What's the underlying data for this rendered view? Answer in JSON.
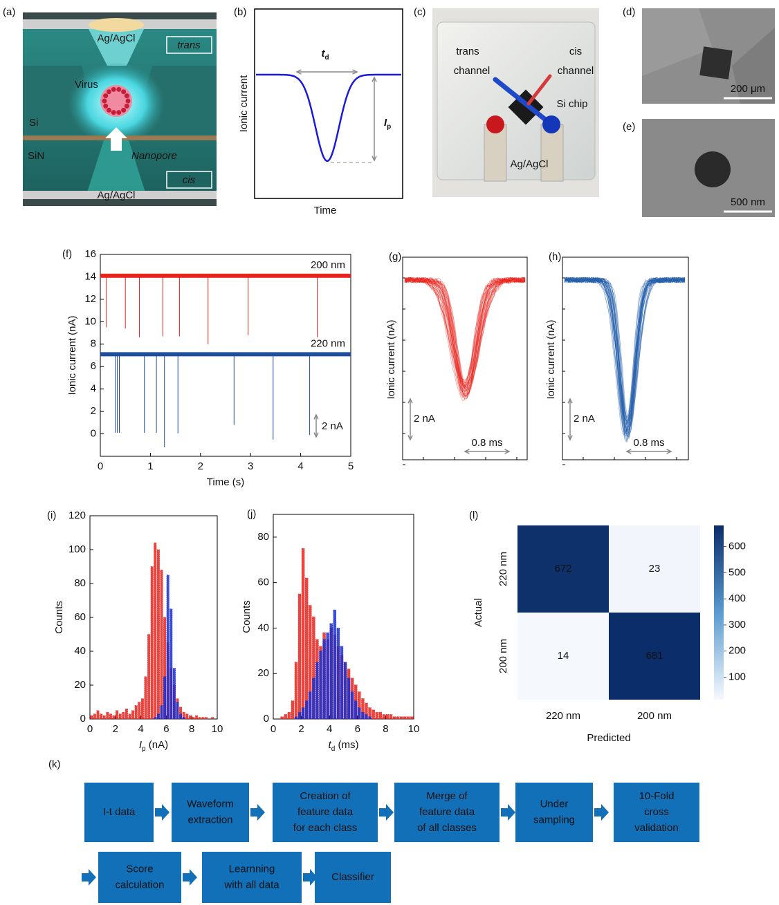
{
  "schematic": {
    "label": "(a)",
    "top_electrode": "Ag/AgCl",
    "trans": "trans",
    "virus": "Virus",
    "si": "Si",
    "sin": "SiN",
    "nanopore": "Nanopore",
    "cis": "cis",
    "bottom_electrode": "Ag/AgCl"
  },
  "concept": {
    "label": "(b)",
    "ylabel": "Ionic current",
    "xlabel": "Time",
    "td": {
      "main": "t",
      "sub": "d"
    },
    "ip": {
      "main": "I",
      "sub": "p"
    }
  },
  "photo": {
    "label": "(c)",
    "trans": [
      "trans",
      "channel"
    ],
    "cis": [
      "cis",
      "channel"
    ],
    "chip": "Si chip",
    "electrode": "Ag/AgCl"
  },
  "sem_top": {
    "label": "(d)",
    "scale": "200 μm"
  },
  "sem_pore": {
    "label": "(e)",
    "scale": "500 nm"
  },
  "chart_data": [
    {
      "type": "line",
      "label": "(f)",
      "xlabel": "Time (s)",
      "ylabel": "Ionic current (nA)",
      "xlim": [
        0,
        5
      ],
      "ylim": [
        -2,
        16
      ],
      "xticks": [
        0,
        1,
        2,
        3,
        4,
        5
      ],
      "yticks": [
        0,
        2,
        4,
        6,
        8,
        10,
        12,
        14,
        16
      ],
      "annotation": "2 nA",
      "series": [
        {
          "name": "200 nm",
          "color": "#e8251f",
          "x": [
            0,
            0.12,
            0.12,
            0.12,
            0.5,
            0.5,
            0.5,
            0.78,
            0.78,
            0.78,
            1.25,
            1.25,
            1.25,
            1.58,
            1.58,
            1.58,
            2.15,
            2.15,
            2.15,
            2.95,
            2.95,
            2.95,
            4.33,
            4.33,
            4.33,
            5
          ],
          "values": [
            14.1,
            14.1,
            9.5,
            14.1,
            14.1,
            9.4,
            14.1,
            14.1,
            8.6,
            14.1,
            14.1,
            8.7,
            14.1,
            14.1,
            8.7,
            14.1,
            14.1,
            8.0,
            14.1,
            14.1,
            8.8,
            14.1,
            14.1,
            8.6,
            14.1,
            14.1
          ]
        },
        {
          "name": "220 nm",
          "color": "#1f4e9c",
          "x": [
            0,
            0.3,
            0.3,
            0.3,
            0.34,
            0.34,
            0.34,
            0.38,
            0.38,
            0.38,
            0.88,
            0.88,
            0.88,
            1.12,
            1.12,
            1.12,
            1.28,
            1.28,
            1.28,
            1.55,
            1.55,
            1.55,
            2.67,
            2.67,
            2.67,
            3.45,
            3.45,
            3.45,
            4.18,
            4.18,
            4.18,
            5
          ],
          "values": [
            7.1,
            7.1,
            0.1,
            7.1,
            7.1,
            0.1,
            7.1,
            7.1,
            0.1,
            7.1,
            7.1,
            0.1,
            7.1,
            7.1,
            0.1,
            7.1,
            7.1,
            -1.2,
            7.1,
            7.1,
            0.05,
            7.1,
            7.1,
            0.8,
            7.1,
            7.1,
            -0.5,
            7.1,
            7.1,
            -0.1,
            7.1,
            7.1
          ]
        }
      ]
    },
    {
      "type": "histogram",
      "label": "(i)",
      "xlabel": {
        "main": "I",
        "sub": "p",
        "unit": " (nA)"
      },
      "ylabel": "Counts",
      "xlim": [
        0,
        10
      ],
      "ylim": [
        0,
        120
      ],
      "xticks": [
        0,
        2,
        4,
        6,
        8,
        10
      ],
      "yticks": [
        0,
        20,
        40,
        60,
        80,
        100,
        120
      ],
      "bins": [
        0,
        0.25,
        0.5,
        0.75,
        1,
        1.25,
        1.5,
        1.75,
        2,
        2.25,
        2.5,
        2.75,
        3,
        3.25,
        3.5,
        3.75,
        4,
        4.25,
        4.5,
        4.75,
        5,
        5.25,
        5.5,
        5.75,
        6,
        6.25,
        6.5,
        6.75,
        7,
        7.25,
        7.5,
        7.75,
        8,
        8.25,
        8.5,
        8.75,
        9,
        9.25,
        9.5,
        9.75,
        10
      ],
      "series": [
        {
          "color": "#e8251f",
          "values": [
            2,
            3,
            5,
            3,
            2,
            4,
            3,
            2,
            5,
            3,
            4,
            6,
            3,
            5,
            8,
            10,
            12,
            25,
            50,
            90,
            104,
            100,
            88,
            60,
            45,
            30,
            20,
            12,
            7,
            4,
            3,
            2,
            1,
            2,
            1,
            1,
            1,
            0,
            1,
            0
          ]
        },
        {
          "color": "#1a2fd0",
          "values": [
            0,
            0,
            0,
            0,
            0,
            0,
            0,
            0,
            0,
            0,
            0,
            0,
            0,
            0,
            0,
            0,
            0,
            0,
            0,
            0,
            1,
            3,
            8,
            25,
            85,
            65,
            30,
            10,
            3,
            1,
            0,
            0,
            0,
            0,
            0,
            0,
            0,
            0,
            0,
            0
          ]
        }
      ]
    },
    {
      "type": "histogram",
      "label": "(j)",
      "xlabel": {
        "main": "t",
        "sub": "d",
        "unit": " (ms)"
      },
      "ylabel": "Counts",
      "xlim": [
        0,
        10
      ],
      "ylim": [
        0,
        90
      ],
      "xticks": [
        0,
        2,
        4,
        6,
        8,
        10
      ],
      "yticks": [
        0,
        20,
        40,
        60,
        80
      ],
      "bins": [
        0,
        0.25,
        0.5,
        0.75,
        1,
        1.25,
        1.5,
        1.75,
        2,
        2.25,
        2.5,
        2.75,
        3,
        3.25,
        3.5,
        3.75,
        4,
        4.25,
        4.5,
        4.75,
        5,
        5.25,
        5.5,
        5.75,
        6,
        6.25,
        6.5,
        6.75,
        7,
        7.25,
        7.5,
        7.75,
        8,
        8.25,
        8.5,
        8.75,
        9,
        9.25,
        9.5,
        9.75,
        10
      ],
      "series": [
        {
          "color": "#e8251f",
          "values": [
            0,
            0,
            1,
            2,
            3,
            8,
            25,
            55,
            75,
            62,
            50,
            45,
            35,
            32,
            38,
            35,
            40,
            37,
            32,
            28,
            25,
            22,
            18,
            15,
            12,
            9,
            7,
            5,
            4,
            3,
            3,
            2,
            2,
            2,
            1,
            1,
            1,
            1,
            1,
            1
          ]
        },
        {
          "color": "#1a2fd0",
          "values": [
            0,
            0,
            0,
            0,
            0,
            0,
            1,
            3,
            5,
            8,
            12,
            18,
            25,
            30,
            35,
            38,
            42,
            48,
            40,
            32,
            25,
            18,
            12,
            8,
            5,
            3,
            2,
            1,
            0,
            0,
            0,
            0,
            0,
            0,
            0,
            0,
            0,
            0,
            0,
            0
          ]
        }
      ]
    },
    {
      "type": "heatmap",
      "label": "(l)",
      "xlabel": "Predicted",
      "ylabel": "Actual",
      "x_categories": [
        "220 nm",
        "200 nm"
      ],
      "y_categories": [
        "220 nm",
        "200 nm"
      ],
      "values": [
        [
          672,
          23
        ],
        [
          14,
          681
        ]
      ],
      "colors": [
        "#f5f9fe",
        "#0b2d69"
      ],
      "colorbar_lim": [
        14,
        681
      ],
      "colorbar_ticks": [
        100,
        200,
        300,
        400,
        500,
        600
      ]
    }
  ],
  "waveforms": [
    {
      "label": "(g)",
      "ylabel": "Ionic current (nA)",
      "scale_y": "2 nA",
      "scale_x": "0.8 ms",
      "color": "#e8251f"
    },
    {
      "label": "(h)",
      "ylabel": "Ionic current (nA)",
      "scale_y": "2 nA",
      "scale_x": "0.8 ms",
      "color": "#1f5aa8"
    }
  ],
  "flow": {
    "label": "(k)",
    "color": "#1170b8",
    "nodes": [
      [
        "I-t data"
      ],
      [
        "Waveform",
        "extraction"
      ],
      [
        "Creation of",
        "feature data",
        "for each class"
      ],
      [
        "Merge of",
        "feature data",
        "of all classes"
      ],
      [
        "Under",
        "sampling"
      ],
      [
        "10-Fold",
        "cross",
        "validation"
      ],
      [
        "Score",
        "calculation"
      ],
      [
        "Learnning",
        "with all data"
      ],
      [
        "Classifier"
      ]
    ]
  }
}
